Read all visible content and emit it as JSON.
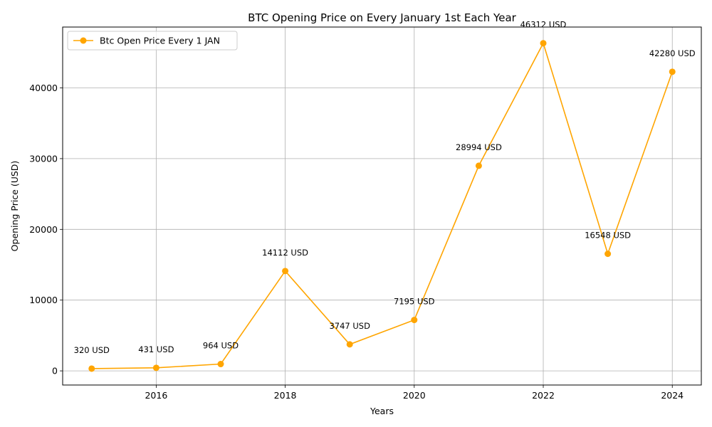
{
  "chart_data": {
    "type": "line",
    "title": "BTC Opening Price on Every January 1st Each Year",
    "xlabel": "Years",
    "ylabel": "Opening Price (USD)",
    "x": [
      2015,
      2016,
      2017,
      2018,
      2019,
      2020,
      2021,
      2022,
      2023,
      2024
    ],
    "series": [
      {
        "name": "Btc Open Price Every 1 JAN",
        "color": "#ffa500",
        "values": [
          320,
          431,
          964,
          14112,
          3747,
          7195,
          28994,
          46312,
          16548,
          42280
        ]
      }
    ],
    "data_labels": [
      "320 USD",
      "431 USD",
      "964 USD",
      "14112 USD",
      "3747 USD",
      "7195 USD",
      "28994 USD",
      "46312 USD",
      "16548 USD",
      "42280 USD"
    ],
    "xlim": [
      2014.55,
      2024.45
    ],
    "ylim": [
      -2000,
      48600
    ],
    "xticks": [
      2016,
      2018,
      2020,
      2022,
      2024
    ],
    "xtick_labels": [
      "2016",
      "2018",
      "2020",
      "2022",
      "2024"
    ],
    "yticks": [
      0,
      10000,
      20000,
      30000,
      40000
    ],
    "ytick_labels": [
      "0",
      "10000",
      "20000",
      "30000",
      "40000"
    ],
    "grid": true,
    "legend": "top-left"
  }
}
